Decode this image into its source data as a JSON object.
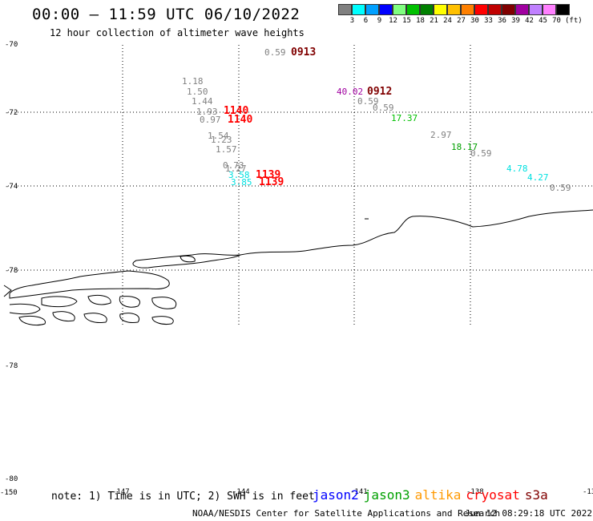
{
  "header": {
    "title": "00:00 – 11:59 UTC 06/10/2022",
    "subtitle": "12 hour collection of altimeter wave heights"
  },
  "legend": {
    "unit": "(ft)",
    "scale": [
      {
        "label": "3",
        "color": "#808080"
      },
      {
        "label": "6",
        "color": "#00ffff"
      },
      {
        "label": "9",
        "color": "#00a0ff"
      },
      {
        "label": "12",
        "color": "#0000ff"
      },
      {
        "label": "15",
        "color": "#80ff80"
      },
      {
        "label": "18",
        "color": "#00c000"
      },
      {
        "label": "21",
        "color": "#008000"
      },
      {
        "label": "24",
        "color": "#ffff00"
      },
      {
        "label": "27",
        "color": "#ffc000"
      },
      {
        "label": "30",
        "color": "#ff8000"
      },
      {
        "label": "33",
        "color": "#ff0000"
      },
      {
        "label": "36",
        "color": "#c00000"
      },
      {
        "label": "39",
        "color": "#800000"
      },
      {
        "label": "42",
        "color": "#a000a0"
      },
      {
        "label": "45",
        "color": "#c080ff"
      },
      {
        "label": "70",
        "color": "#ff80ff"
      },
      {
        "label": "",
        "color": "#000000"
      }
    ]
  },
  "axis": {
    "lat_labels": [
      "-70",
      "-72",
      "-74",
      "-78",
      "-78",
      "-80"
    ],
    "lon_labels": [
      "-150",
      "-147",
      "-144",
      "-141",
      "-138",
      "-13"
    ]
  },
  "observations": [
    {
      "text": "0.59",
      "color": "#808080"
    },
    {
      "text": "0913",
      "color": "#800000"
    },
    {
      "text": "1.18",
      "color": "#808080"
    },
    {
      "text": "1.50",
      "color": "#808080"
    },
    {
      "text": "1.44",
      "color": "#808080"
    },
    {
      "text": "1.93",
      "color": "#808080"
    },
    {
      "text": "0.97",
      "color": "#808080"
    },
    {
      "text": "1140",
      "color": "#ff0000"
    },
    {
      "text": "1140",
      "color": "#ff0000"
    },
    {
      "text": "1.54",
      "color": "#808080"
    },
    {
      "text": "1.23",
      "color": "#808080"
    },
    {
      "text": "1.57",
      "color": "#808080"
    },
    {
      "text": "0.73",
      "color": "#808080"
    },
    {
      "text": "1.27",
      "color": "#808080"
    },
    {
      "text": "3.58",
      "color": "#00e0e0"
    },
    {
      "text": "3.85",
      "color": "#00e0e0"
    },
    {
      "text": "1139",
      "color": "#ff0000"
    },
    {
      "text": "1139",
      "color": "#ff0000"
    },
    {
      "text": "40.02",
      "color": "#a000a0"
    },
    {
      "text": "0912",
      "color": "#800000"
    },
    {
      "text": "0.59",
      "color": "#808080"
    },
    {
      "text": "0.59",
      "color": "#808080"
    },
    {
      "text": "17.37",
      "color": "#00c000"
    },
    {
      "text": "2.97",
      "color": "#808080"
    },
    {
      "text": "18.17",
      "color": "#00a000"
    },
    {
      "text": "0.59",
      "color": "#808080"
    },
    {
      "text": "4.78",
      "color": "#00e0e0"
    },
    {
      "text": "4.27",
      "color": "#00e0e0"
    },
    {
      "text": "0.59",
      "color": "#808080"
    }
  ],
  "footer": {
    "note": "note: 1) Time is in UTC; 2) SWH is in feet",
    "satellites": [
      {
        "name": "jason2",
        "color": "#0000ff"
      },
      {
        "name": "jason3",
        "color": "#00a000"
      },
      {
        "name": "altika",
        "color": "#ff9900"
      },
      {
        "name": "cryosat",
        "color": "#ff0000"
      },
      {
        "name": "s3a",
        "color": "#800000"
      }
    ],
    "credit": "NOAA/NESDIS Center for Satellite Applications and Research",
    "timestamp": "Jun 12 08:29:18 UTC 2022"
  }
}
